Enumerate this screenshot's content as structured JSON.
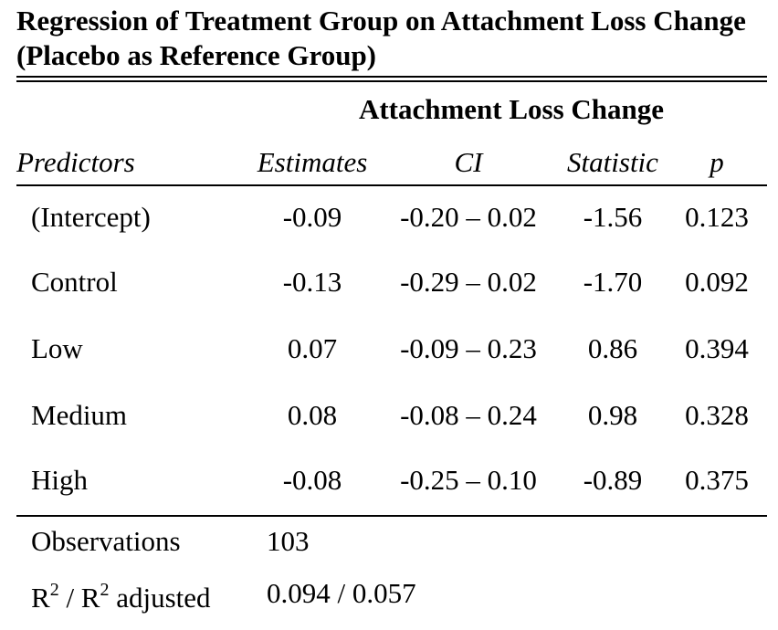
{
  "title": "Regression of Treatment Group on Attachment Loss Change (Placebo as Reference Group)",
  "group_header": "Attachment Loss Change",
  "columns": {
    "predictors": "Predictors",
    "estimates": "Estimates",
    "ci": "CI",
    "statistic": "Statistic",
    "p": "p"
  },
  "rows": [
    {
      "predictor": "(Intercept)",
      "estimate": "-0.09",
      "ci": "-0.20 – 0.02",
      "statistic": "-1.56",
      "p": "0.123"
    },
    {
      "predictor": "Control",
      "estimate": "-0.13",
      "ci": "-0.29 – 0.02",
      "statistic": "-1.70",
      "p": "0.092"
    },
    {
      "predictor": "Low",
      "estimate": "0.07",
      "ci": "-0.09 – 0.23",
      "statistic": "0.86",
      "p": "0.394"
    },
    {
      "predictor": "Medium",
      "estimate": "0.08",
      "ci": "-0.08 – 0.24",
      "statistic": "0.98",
      "p": "0.328"
    },
    {
      "predictor": "High",
      "estimate": "-0.08",
      "ci": "-0.25 – 0.10",
      "statistic": "-0.89",
      "p": "0.375"
    }
  ],
  "footer": {
    "observations_label": "Observations",
    "observations_value": "103",
    "r2_label_r": "R",
    "r2_sup": "2",
    "r2_sep": " / R",
    "r2_sup2": "2",
    "r2_suffix": " adjusted",
    "r2_value": "0.094 / 0.057"
  }
}
